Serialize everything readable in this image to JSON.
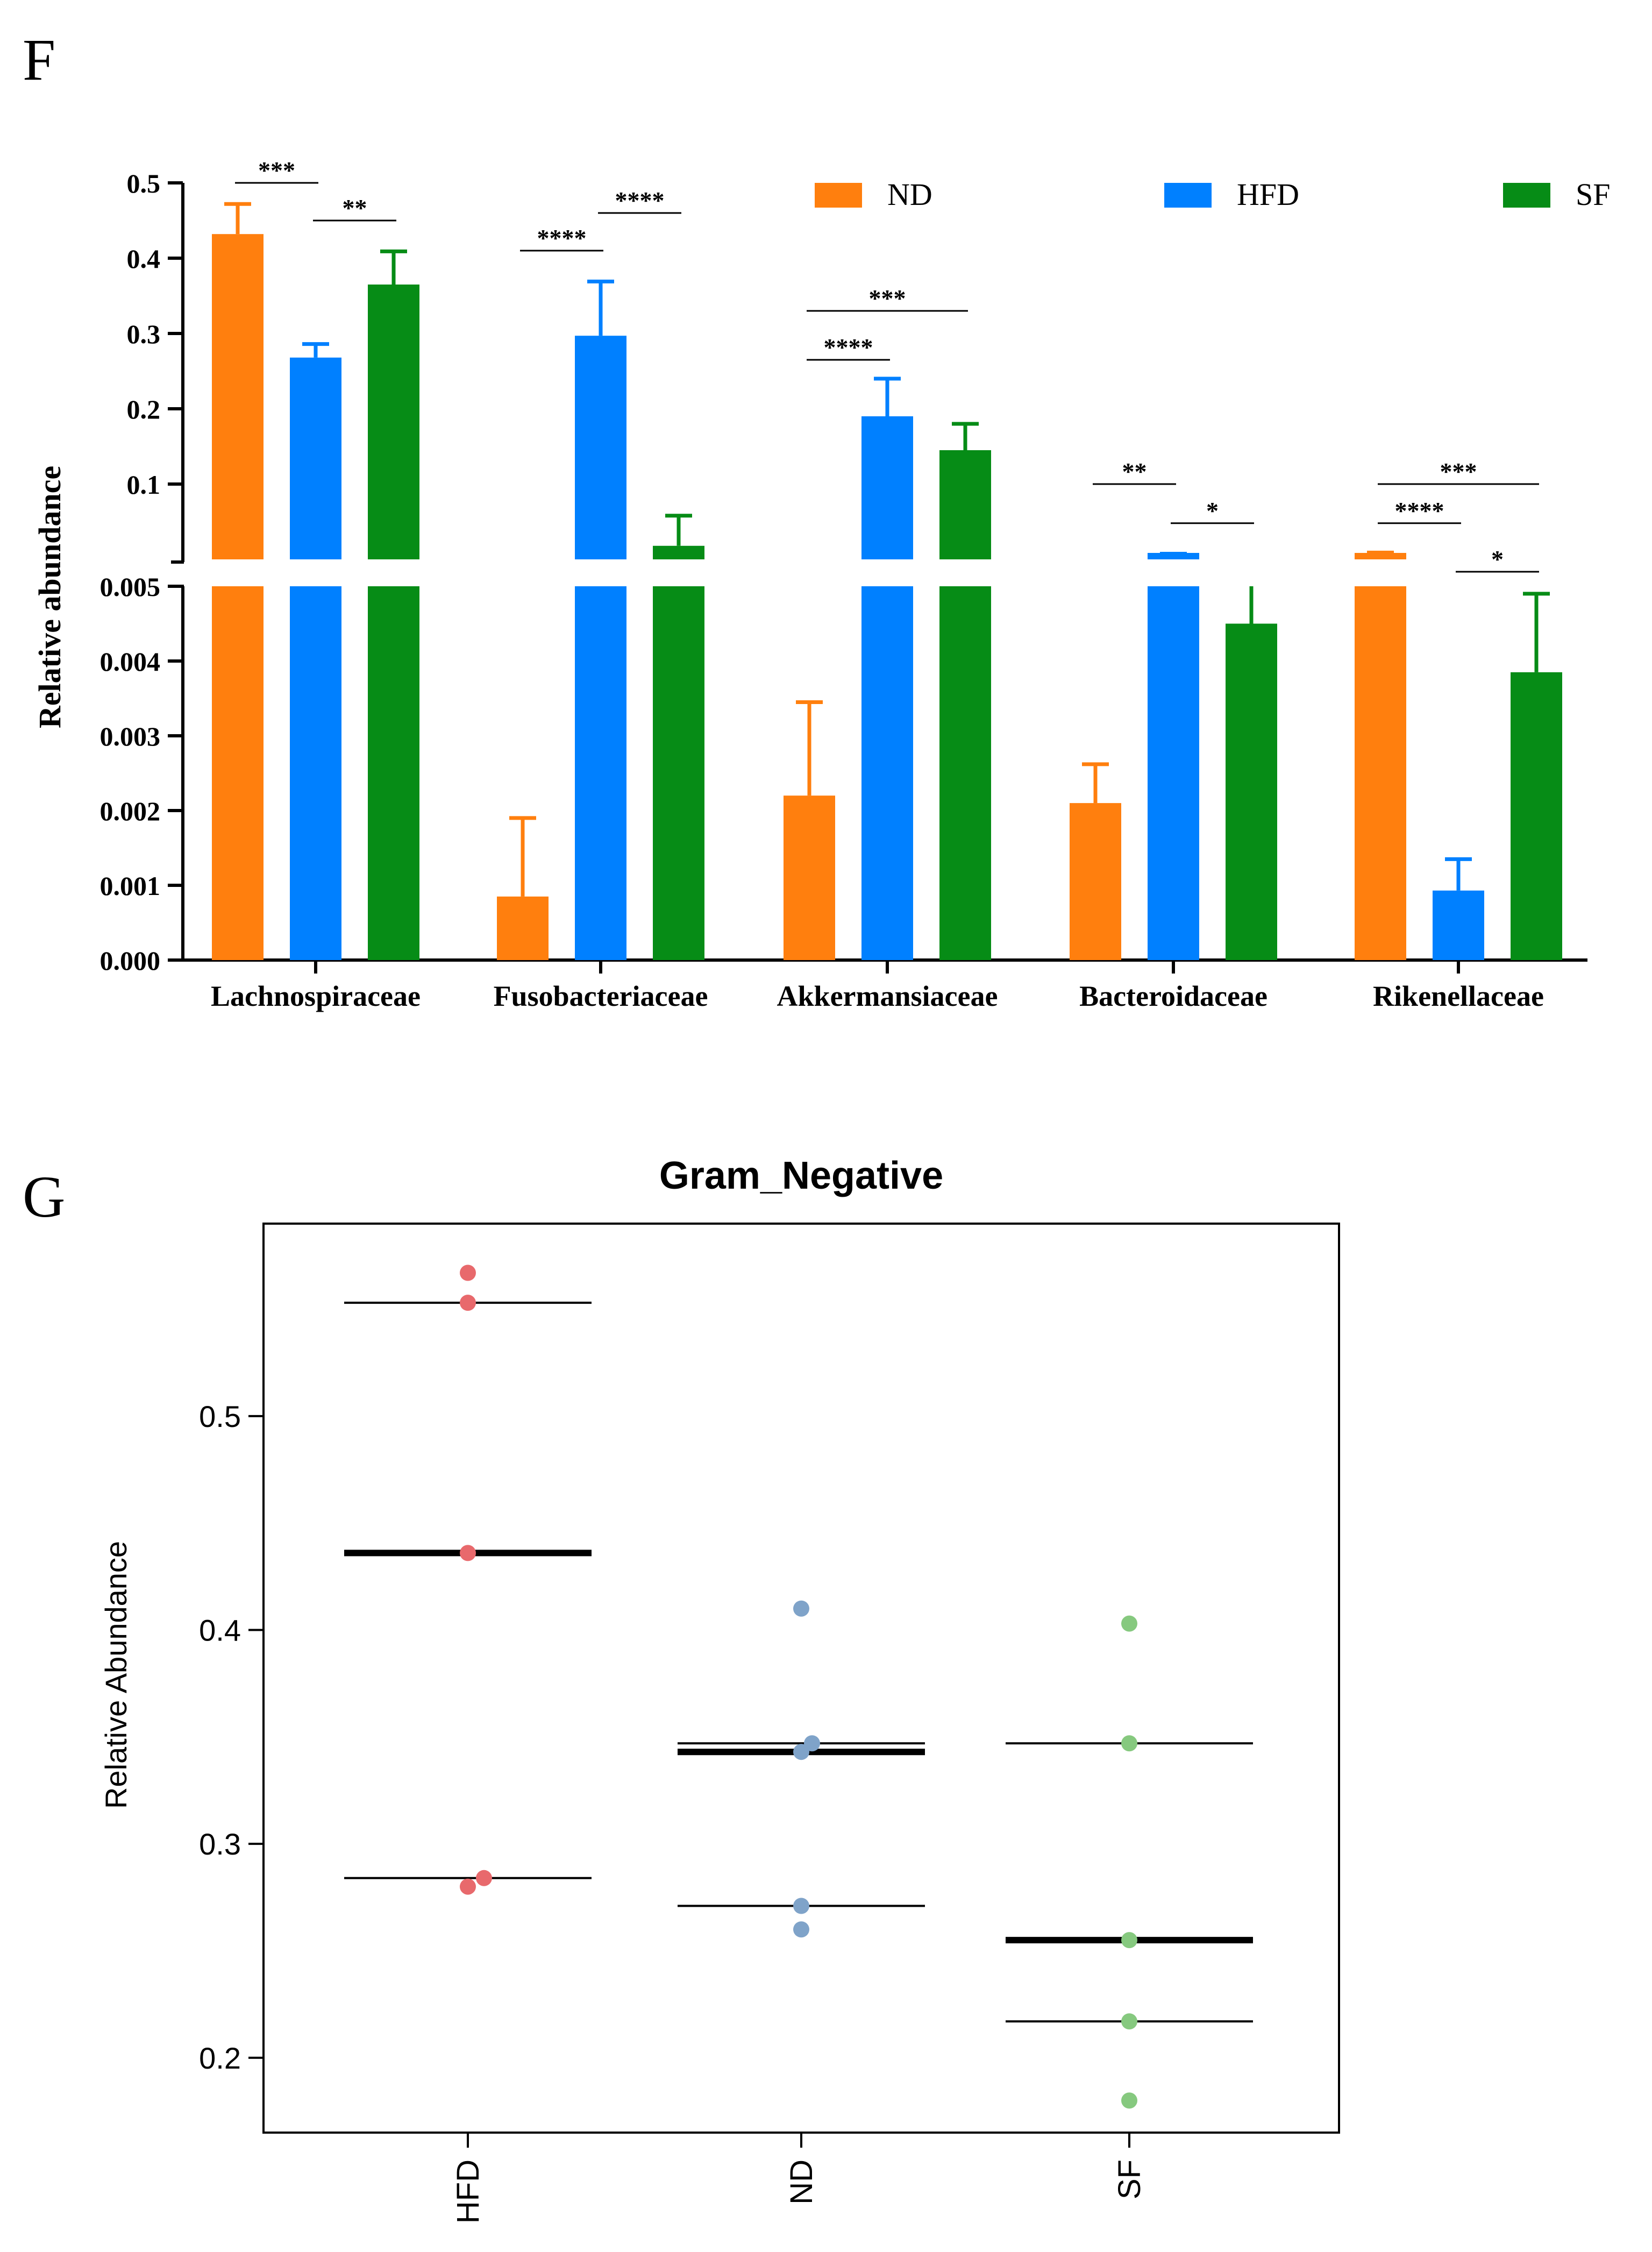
{
  "panels": {
    "f_label": "F",
    "g_label": "G"
  },
  "colors": {
    "ND": "#ff7f0e",
    "HFD": "#0080ff",
    "SF": "#068c16",
    "HFD_dot": "#e8696c",
    "ND_dot": "#7fa3c9",
    "SF_dot": "#86c97f"
  },
  "chart_data": [
    {
      "type": "bar",
      "title": "",
      "xlabel": "",
      "ylabel": "Relative abundance",
      "axis_break": {
        "lower_range": [
          0,
          0.005
        ],
        "upper_range": [
          0.0,
          0.5
        ]
      },
      "yticks_upper": [
        "0.1",
        "0.2",
        "0.3",
        "0.4",
        "0.5"
      ],
      "yticks_lower": [
        "0.000",
        "0.001",
        "0.002",
        "0.003",
        "0.004",
        "0.005"
      ],
      "yticks_upper_values": [
        0.1,
        0.2,
        0.3,
        0.4,
        0.5
      ],
      "yticks_lower_values": [
        0,
        0.001,
        0.002,
        0.003,
        0.004,
        0.005
      ],
      "categories": [
        "Lachnospiraceae",
        "Fusobacteriaceae",
        "Akkermansiaceae",
        "Bacteroidaceae",
        "Rikenellaceae"
      ],
      "legend": [
        "ND",
        "HFD",
        "SF"
      ],
      "series": [
        {
          "name": "ND",
          "values": [
            0.432,
            0.00085,
            0.0022,
            0.0021,
            0.006
          ],
          "errors": [
            0.04,
            0.00105,
            0.00125,
            0.00052,
            0.003
          ]
        },
        {
          "name": "HFD",
          "values": [
            0.268,
            0.297,
            0.19,
            0.0055,
            0.00093
          ],
          "errors": [
            0.018,
            0.072,
            0.05,
            0.002,
            0.00042
          ]
        },
        {
          "name": "SF",
          "values": [
            0.365,
            0.018,
            0.145,
            0.0045,
            0.00385
          ],
          "errors": [
            0.044,
            0.04,
            0.035,
            0.0009,
            0.00105
          ]
        }
      ],
      "significance": [
        {
          "category": 0,
          "from": "ND",
          "to": "HFD",
          "label": "***",
          "level": 0.5
        },
        {
          "category": 0,
          "from": "HFD",
          "to": "SF",
          "label": "**",
          "level": 0.45
        },
        {
          "category": 1,
          "from": "ND",
          "to": "HFD",
          "label": "****",
          "level": 0.41
        },
        {
          "category": 1,
          "from": "HFD",
          "to": "SF",
          "label": "****",
          "level": 0.46
        },
        {
          "category": 2,
          "from": "ND",
          "to": "SF",
          "label": "***",
          "level": 0.33
        },
        {
          "category": 2,
          "from": "ND",
          "to": "HFD",
          "label": "****",
          "level": 0.265
        },
        {
          "category": 3,
          "from": "ND",
          "to": "HFD",
          "label": "**",
          "level": 0.1
        },
        {
          "category": 3,
          "from": "HFD",
          "to": "SF",
          "label": "*",
          "level": 0.048
        },
        {
          "category": 4,
          "from": "ND",
          "to": "SF",
          "label": "***",
          "level": 0.1
        },
        {
          "category": 4,
          "from": "ND",
          "to": "HFD",
          "label": "****",
          "level": 0.048
        },
        {
          "category": 4,
          "from": "HFD",
          "to": "SF",
          "label": "*",
          "level": 0.005
        }
      ]
    },
    {
      "type": "scatter",
      "title": "Gram_Negative",
      "xlabel": "",
      "ylabel": "Relative Abundance",
      "categories": [
        "HFD",
        "ND",
        "SF"
      ],
      "ylim": [
        0.165,
        0.59
      ],
      "yticks": [
        "0.2",
        "0.3",
        "0.4",
        "0.5"
      ],
      "ytick_values": [
        0.2,
        0.3,
        0.4,
        0.5
      ],
      "series": [
        {
          "name": "HFD",
          "points": [
            0.567,
            0.553,
            0.436,
            0.284,
            0.28
          ],
          "median": 0.436,
          "q1": 0.284,
          "q3": 0.553
        },
        {
          "name": "ND",
          "points": [
            0.41,
            0.347,
            0.343,
            0.271,
            0.26
          ],
          "median": 0.343,
          "q1": 0.271,
          "q3": 0.347
        },
        {
          "name": "SF",
          "points": [
            0.403,
            0.347,
            0.255,
            0.217,
            0.18
          ],
          "median": 0.255,
          "q1": 0.217,
          "q3": 0.347
        }
      ]
    }
  ]
}
